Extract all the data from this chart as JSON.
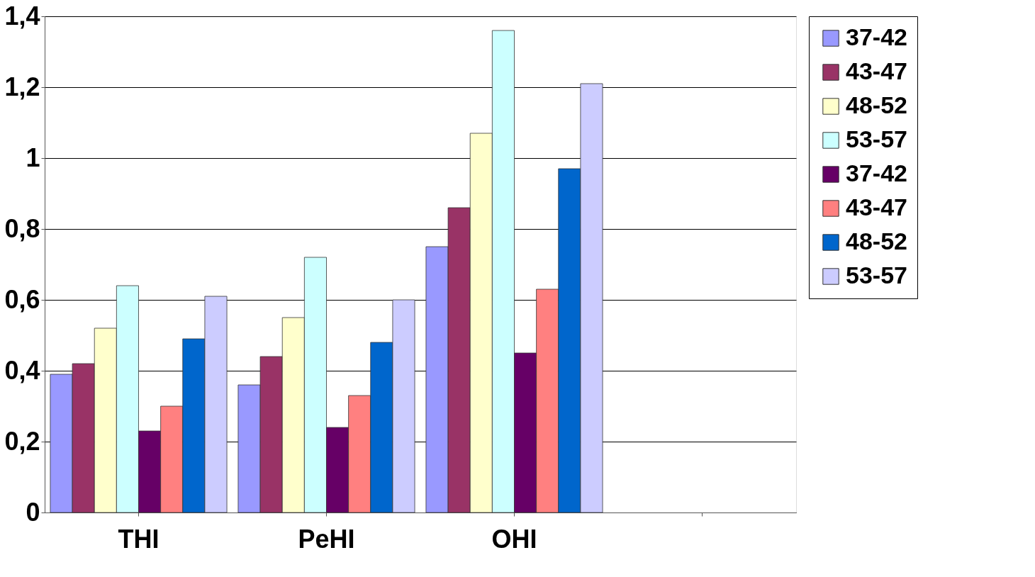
{
  "chart_data": {
    "type": "bar",
    "categories": [
      "THI",
      "PeHI",
      "OHI",
      null
    ],
    "series": [
      {
        "name": "37-42",
        "color": "#9999ff",
        "values": [
          0.39,
          0.36,
          0.75,
          null
        ]
      },
      {
        "name": "43-47",
        "color": "#993366",
        "values": [
          0.42,
          0.44,
          0.86,
          null
        ]
      },
      {
        "name": "48-52",
        "color": "#ffffcc",
        "values": [
          0.52,
          0.55,
          1.07,
          null
        ]
      },
      {
        "name": "53-57",
        "color": "#ccffff",
        "values": [
          0.64,
          0.72,
          1.36,
          null
        ]
      },
      {
        "name": "37-42",
        "color": "#660066",
        "values": [
          0.23,
          0.24,
          0.45,
          null
        ]
      },
      {
        "name": "43-47",
        "color": "#ff8080",
        "values": [
          0.3,
          0.33,
          0.63,
          null
        ]
      },
      {
        "name": "48-52",
        "color": "#0066cc",
        "values": [
          0.49,
          0.48,
          0.97,
          null
        ]
      },
      {
        "name": "53-57",
        "color": "#ccccff",
        "values": [
          0.61,
          0.6,
          1.21,
          null
        ]
      }
    ],
    "ylim": [
      0,
      1.4
    ],
    "yticks": [
      0,
      {
        "value": 0.2,
        "label": "0,2"
      },
      {
        "value": 0.4,
        "label": "0,4"
      },
      {
        "value": 0.6,
        "label": "0,6"
      },
      {
        "value": 0.8,
        "label": "0,8"
      },
      1,
      {
        "value": 1.2,
        "label": "1,2"
      },
      {
        "value": 1.4,
        "label": "1,4"
      }
    ],
    "grid": "y",
    "legend": "right"
  }
}
